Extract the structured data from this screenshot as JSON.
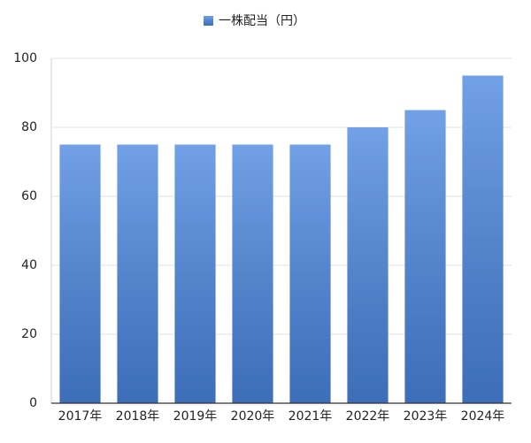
{
  "chart_data": {
    "type": "bar",
    "categories": [
      "2017年",
      "2018年",
      "2019年",
      "2020年",
      "2021年",
      "2022年",
      "2023年",
      "2024年"
    ],
    "series": [
      {
        "name": "一株配当（円）",
        "color": "#4a86e0",
        "values": [
          75,
          75,
          75,
          75,
          75,
          80,
          85,
          95
        ]
      }
    ],
    "ylim": [
      0,
      100
    ],
    "yticks": [
      0,
      20,
      40,
      60,
      80,
      100
    ],
    "grid": true,
    "legend": "top"
  }
}
